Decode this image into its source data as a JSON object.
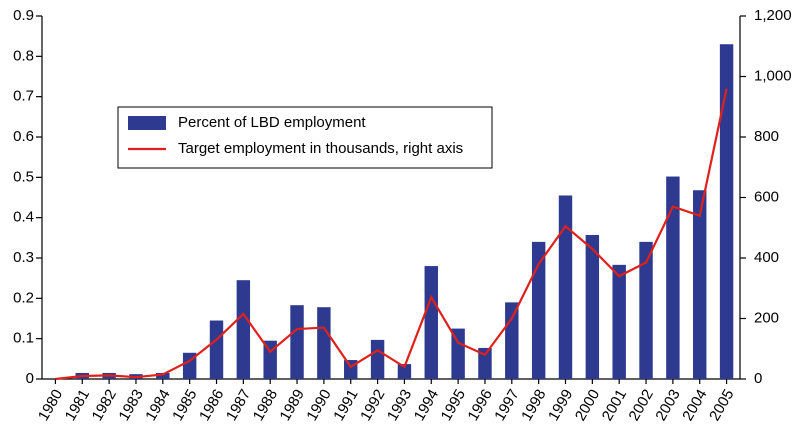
{
  "chart_data": {
    "type": "bar-line",
    "categories": [
      "1980",
      "1981",
      "1982",
      "1983",
      "1984",
      "1985",
      "1986",
      "1987",
      "1988",
      "1989",
      "1990",
      "1991",
      "1992",
      "1993",
      "1994",
      "1995",
      "1996",
      "1997",
      "1998",
      "1999",
      "2000",
      "2001",
      "2002",
      "2003",
      "2004",
      "2005"
    ],
    "series": [
      {
        "name": "Percent of LBD employment",
        "type": "bar",
        "color": "#2e3a8f",
        "values": [
          0,
          0.015,
          0.015,
          0.012,
          0.015,
          0.065,
          0.145,
          0.245,
          0.095,
          0.183,
          0.178,
          0.047,
          0.097,
          0.037,
          0.28,
          0.125,
          0.077,
          0.19,
          0.34,
          0.455,
          0.357,
          0.283,
          0.34,
          0.502,
          0.468,
          0.83
        ]
      },
      {
        "name": "Target employment in thousands, right axis",
        "type": "line",
        "axis": "y2",
        "color": "#e0201b",
        "values": [
          0,
          10,
          12,
          6,
          15,
          60,
          130,
          215,
          90,
          165,
          170,
          40,
          95,
          40,
          270,
          120,
          80,
          200,
          380,
          505,
          430,
          340,
          385,
          570,
          540,
          960
        ]
      }
    ],
    "ylim": [
      0,
      0.9
    ],
    "yticks": [
      0,
      0.1,
      0.2,
      0.3,
      0.4,
      0.5,
      0.6,
      0.7,
      0.8,
      0.9
    ],
    "y2lim": [
      0,
      1200
    ],
    "y2ticks": [
      0,
      200,
      400,
      600,
      800,
      {
        "value": 1000,
        "label": "1,000"
      },
      {
        "value": 1200,
        "label": "1,200"
      }
    ],
    "legend": "upper-left",
    "grid": false
  }
}
